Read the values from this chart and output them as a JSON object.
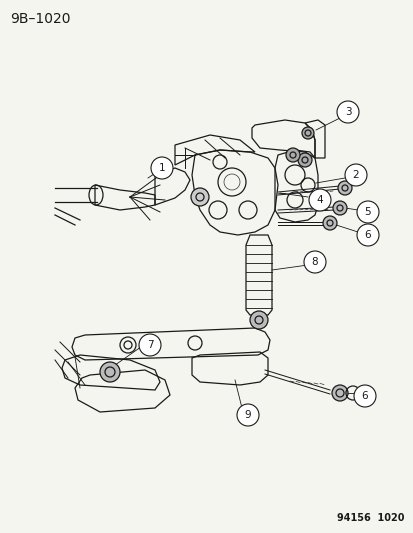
{
  "title": "9B–1020",
  "footer": "94156  1020",
  "bg_color": "#f5f5f0",
  "text_color": "#1a1a1a",
  "title_fontsize": 10,
  "footer_fontsize": 7,
  "callout_fontsize": 7.5,
  "lw": 0.9
}
